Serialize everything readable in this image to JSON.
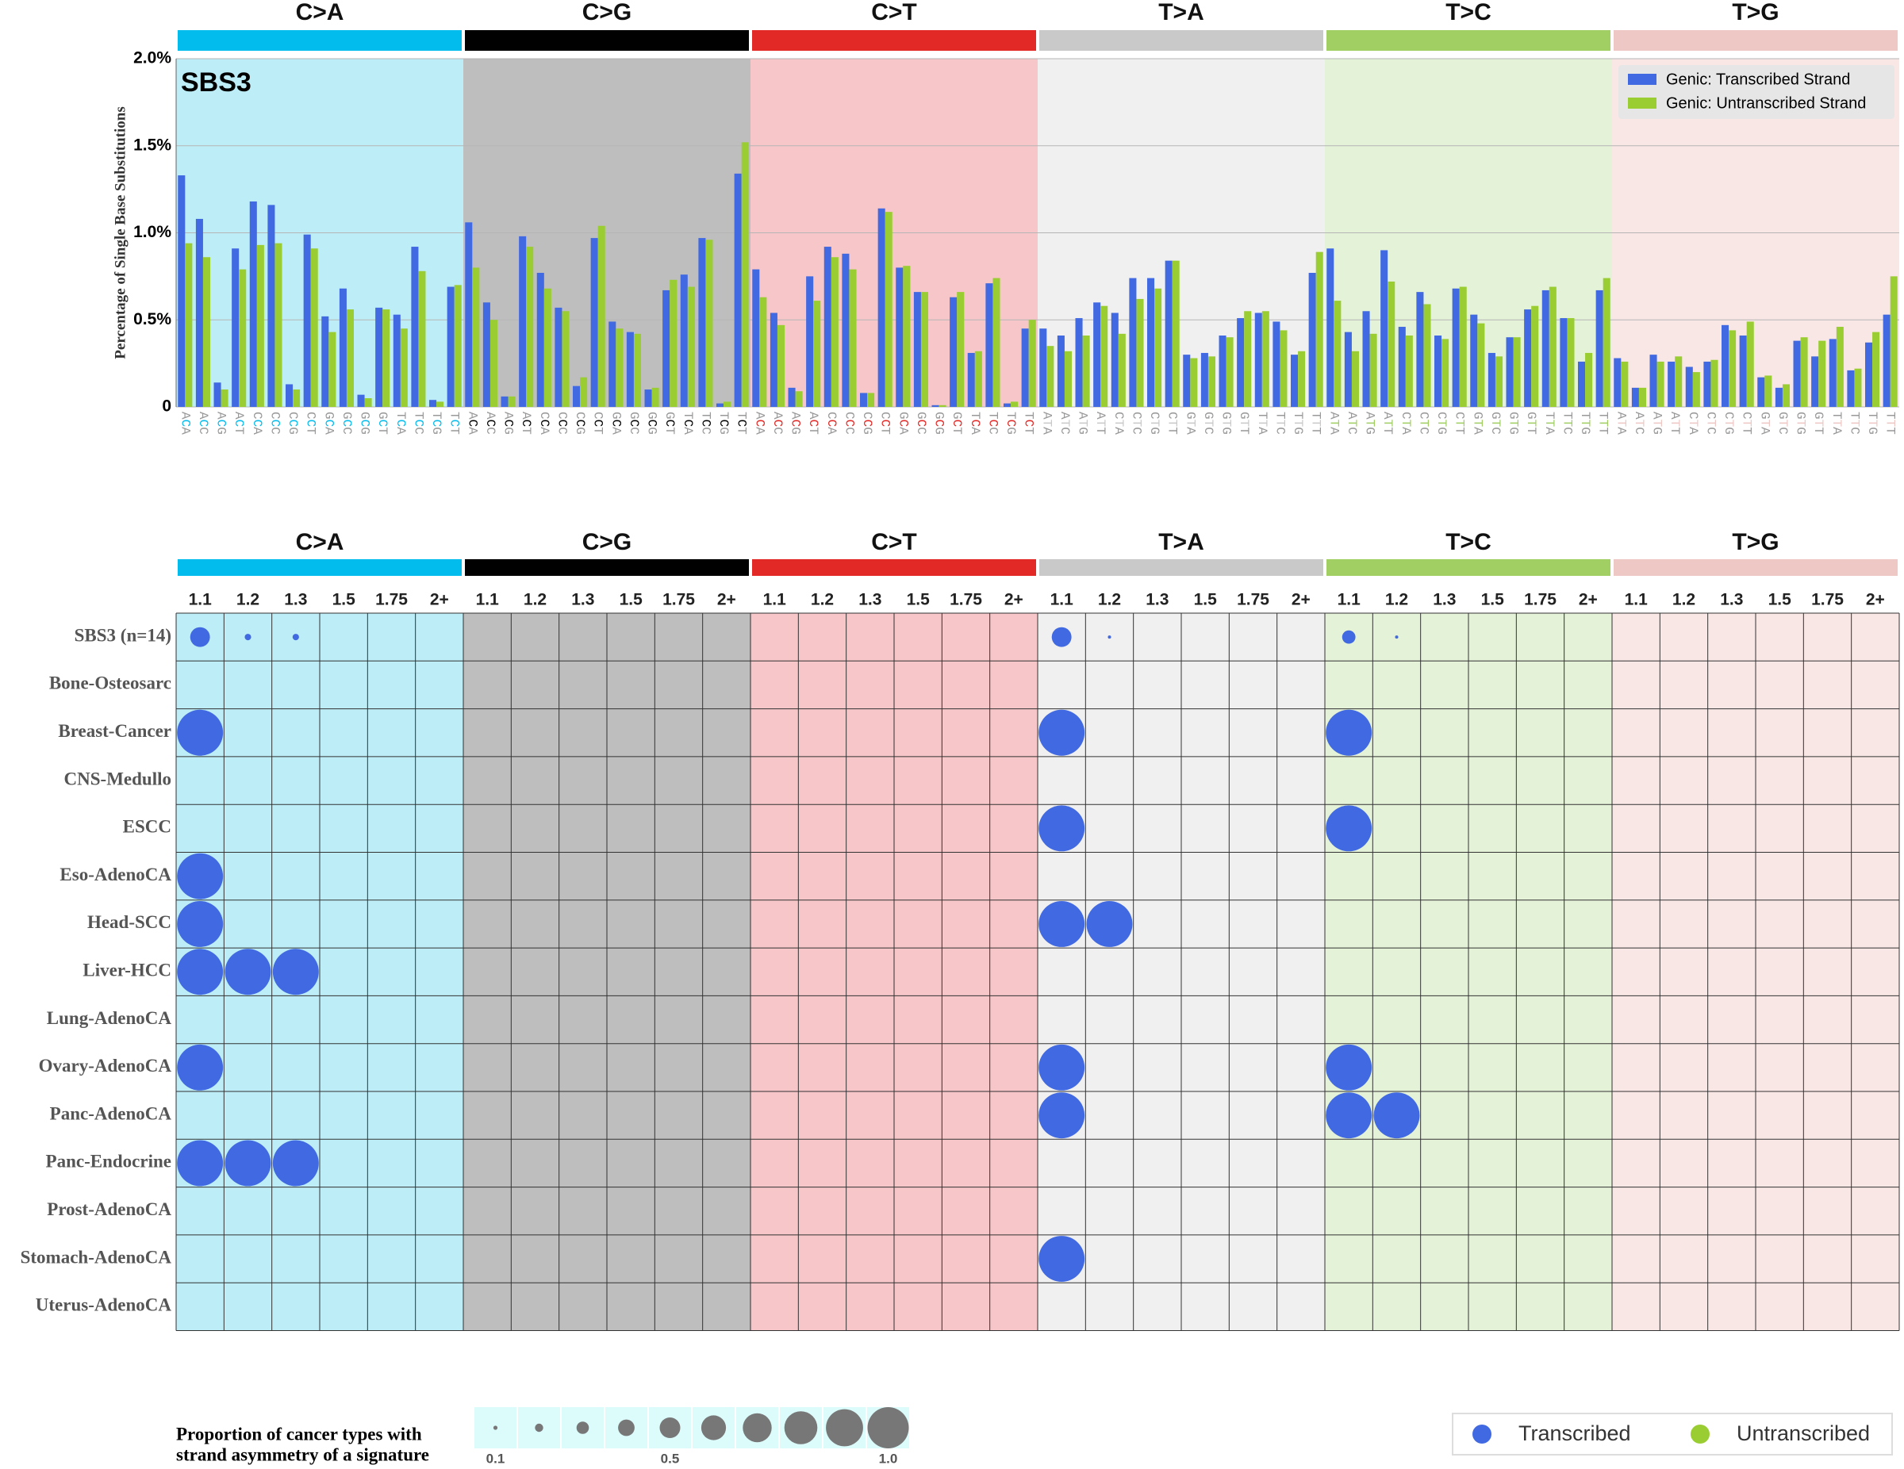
{
  "chart_data": [
    {
      "type": "bar",
      "title": "SBS3",
      "y_label": "Percentage of Single Base Substitutions",
      "groups": [
        {
          "name": "C>A",
          "color": "#03bcee",
          "background": "#bdeef7"
        },
        {
          "name": "C>G",
          "color": "#010101",
          "background": "#bebebe"
        },
        {
          "name": "C>T",
          "color": "#e32926",
          "background": "#f6c6c8"
        },
        {
          "name": "T>A",
          "color": "#cac9c9",
          "background": "#f0f0f0"
        },
        {
          "name": "T>C",
          "color": "#a1cf64",
          "background": "#e4f2d8"
        },
        {
          "name": "T>G",
          "color": "#edc8c5",
          "background": "#f9e7e5"
        }
      ],
      "categories": [
        "ACA",
        "ACC",
        "ACG",
        "ACT",
        "CCA",
        "CCC",
        "CCG",
        "CCT",
        "GCA",
        "GCC",
        "GCG",
        "GCT",
        "TCA",
        "TCC",
        "TCG",
        "TCT",
        "ACA",
        "ACC",
        "ACG",
        "ACT",
        "CCA",
        "CCC",
        "CCG",
        "CCT",
        "GCA",
        "GCC",
        "GCG",
        "GCT",
        "TCA",
        "TCC",
        "TCG",
        "TCT",
        "ACA",
        "ACC",
        "ACG",
        "ACT",
        "CCA",
        "CCC",
        "CCG",
        "CCT",
        "GCA",
        "GCC",
        "GCG",
        "GCT",
        "TCA",
        "TCC",
        "TCG",
        "TCT",
        "ATA",
        "ATC",
        "ATG",
        "ATT",
        "CTA",
        "CTC",
        "CTG",
        "CTT",
        "GTA",
        "GTC",
        "GTG",
        "GTT",
        "TTA",
        "TTC",
        "TTG",
        "TTT",
        "ATA",
        "ATC",
        "ATG",
        "ATT",
        "CTA",
        "CTC",
        "CTG",
        "CTT",
        "GTA",
        "GTC",
        "GTG",
        "GTT",
        "TTA",
        "TTC",
        "TTG",
        "TTT",
        "ATA",
        "ATC",
        "ATG",
        "ATT",
        "CTA",
        "CTC",
        "CTG",
        "CTT",
        "GTA",
        "GTC",
        "GTG",
        "GTT",
        "TTA",
        "TTC",
        "TTG",
        "TTT"
      ],
      "series": [
        {
          "name": "Genic: Transcribed Strand",
          "color": "#4169e1",
          "values": [
            1.33,
            1.08,
            0.14,
            0.91,
            1.18,
            1.16,
            0.13,
            0.99,
            0.52,
            0.68,
            0.07,
            0.57,
            0.53,
            0.92,
            0.04,
            0.69,
            1.06,
            0.6,
            0.06,
            0.98,
            0.77,
            0.57,
            0.12,
            0.97,
            0.49,
            0.43,
            0.1,
            0.67,
            0.76,
            0.97,
            0.02,
            1.34,
            0.79,
            0.54,
            0.11,
            0.75,
            0.92,
            0.88,
            0.08,
            1.14,
            0.8,
            0.66,
            0.01,
            0.63,
            0.31,
            0.71,
            0.02,
            0.45,
            0.45,
            0.41,
            0.51,
            0.6,
            0.54,
            0.74,
            0.74,
            0.84,
            0.3,
            0.31,
            0.41,
            0.51,
            0.54,
            0.49,
            0.3,
            0.77,
            0.91,
            0.43,
            0.55,
            0.9,
            0.46,
            0.66,
            0.41,
            0.68,
            0.53,
            0.31,
            0.4,
            0.56,
            0.67,
            0.51,
            0.26,
            0.67,
            0.28,
            0.11,
            0.3,
            0.26,
            0.23,
            0.26,
            0.47,
            0.41,
            0.17,
            0.11,
            0.38,
            0.29,
            0.39,
            0.21,
            0.37,
            0.53
          ]
        },
        {
          "name": "Genic: Untranscribed Strand",
          "color": "#9acd32",
          "values": [
            0.94,
            0.86,
            0.1,
            0.79,
            0.93,
            0.94,
            0.1,
            0.91,
            0.43,
            0.56,
            0.05,
            0.56,
            0.45,
            0.78,
            0.03,
            0.7,
            0.8,
            0.5,
            0.06,
            0.92,
            0.68,
            0.55,
            0.17,
            1.04,
            0.45,
            0.42,
            0.11,
            0.73,
            0.69,
            0.96,
            0.03,
            1.52,
            0.63,
            0.47,
            0.09,
            0.61,
            0.86,
            0.79,
            0.08,
            1.12,
            0.81,
            0.66,
            0.01,
            0.66,
            0.32,
            0.74,
            0.03,
            0.5,
            0.35,
            0.32,
            0.41,
            0.58,
            0.42,
            0.62,
            0.68,
            0.84,
            0.28,
            0.29,
            0.4,
            0.55,
            0.55,
            0.44,
            0.32,
            0.89,
            0.61,
            0.32,
            0.42,
            0.72,
            0.41,
            0.59,
            0.39,
            0.69,
            0.48,
            0.29,
            0.4,
            0.58,
            0.69,
            0.51,
            0.31,
            0.74,
            0.26,
            0.11,
            0.26,
            0.29,
            0.2,
            0.27,
            0.44,
            0.49,
            0.18,
            0.13,
            0.4,
            0.38,
            0.46,
            0.22,
            0.43,
            0.75
          ]
        }
      ],
      "ylim": [
        0,
        2
      ],
      "yticks": [
        0,
        {
          "value": 0.5,
          "label": "0.5%"
        },
        {
          "value": 1.0,
          "label": "1.0%"
        },
        {
          "value": 1.5,
          "label": "1.5%"
        },
        {
          "value": 2.0,
          "label": "2.0%"
        }
      ],
      "grid": true,
      "legend": "upper right"
    },
    {
      "type": "bubble",
      "groups": [
        {
          "name": "C>A",
          "color": "#03bcee",
          "background": "#bdeef7"
        },
        {
          "name": "C>G",
          "color": "#010101",
          "background": "#bebebe"
        },
        {
          "name": "C>T",
          "color": "#e32926",
          "background": "#f6c6c8"
        },
        {
          "name": "T>A",
          "color": "#cac9c9",
          "background": "#f0f0f0"
        },
        {
          "name": "T>C",
          "color": "#a1cf64",
          "background": "#e4f2d8"
        },
        {
          "name": "T>G",
          "color": "#edc8c5",
          "background": "#f9e7e5"
        }
      ],
      "thresholds": [
        "1.1",
        "1.2",
        "1.3",
        "1.5",
        "1.75",
        "2+"
      ],
      "color": "#4169e1",
      "rows": [
        {
          "label": "SBS3 (n=14)",
          "values": [
            0.43,
            0.14,
            0.14,
            null,
            null,
            null,
            null,
            null,
            null,
            null,
            null,
            null,
            null,
            null,
            null,
            null,
            null,
            null,
            0.43,
            0.07,
            null,
            null,
            null,
            null,
            0.29,
            0.07,
            null,
            null,
            null,
            null,
            null,
            null,
            null,
            null,
            null,
            null
          ]
        },
        {
          "label": "Bone-Osteosarc",
          "values": [
            null,
            null,
            null,
            null,
            null,
            null,
            null,
            null,
            null,
            null,
            null,
            null,
            null,
            null,
            null,
            null,
            null,
            null,
            null,
            null,
            null,
            null,
            null,
            null,
            null,
            null,
            null,
            null,
            null,
            null,
            null,
            null,
            null,
            null,
            null,
            null
          ]
        },
        {
          "label": "Breast-Cancer",
          "values": [
            1,
            null,
            null,
            null,
            null,
            null,
            null,
            null,
            null,
            null,
            null,
            null,
            null,
            null,
            null,
            null,
            null,
            null,
            1,
            null,
            null,
            null,
            null,
            null,
            1,
            null,
            null,
            null,
            null,
            null,
            null,
            null,
            null,
            null,
            null,
            null
          ]
        },
        {
          "label": "CNS-Medullo",
          "values": [
            null,
            null,
            null,
            null,
            null,
            null,
            null,
            null,
            null,
            null,
            null,
            null,
            null,
            null,
            null,
            null,
            null,
            null,
            null,
            null,
            null,
            null,
            null,
            null,
            null,
            null,
            null,
            null,
            null,
            null,
            null,
            null,
            null,
            null,
            null,
            null
          ]
        },
        {
          "label": "ESCC",
          "values": [
            null,
            null,
            null,
            null,
            null,
            null,
            null,
            null,
            null,
            null,
            null,
            null,
            null,
            null,
            null,
            null,
            null,
            null,
            1,
            null,
            null,
            null,
            null,
            null,
            1,
            null,
            null,
            null,
            null,
            null,
            null,
            null,
            null,
            null,
            null,
            null
          ]
        },
        {
          "label": "Eso-AdenoCA",
          "values": [
            1,
            null,
            null,
            null,
            null,
            null,
            null,
            null,
            null,
            null,
            null,
            null,
            null,
            null,
            null,
            null,
            null,
            null,
            null,
            null,
            null,
            null,
            null,
            null,
            null,
            null,
            null,
            null,
            null,
            null,
            null,
            null,
            null,
            null,
            null,
            null
          ]
        },
        {
          "label": "Head-SCC",
          "values": [
            1,
            null,
            null,
            null,
            null,
            null,
            null,
            null,
            null,
            null,
            null,
            null,
            null,
            null,
            null,
            null,
            null,
            null,
            1,
            1,
            null,
            null,
            null,
            null,
            null,
            null,
            null,
            null,
            null,
            null,
            null,
            null,
            null,
            null,
            null,
            null
          ]
        },
        {
          "label": "Liver-HCC",
          "values": [
            1,
            1,
            1,
            null,
            null,
            null,
            null,
            null,
            null,
            null,
            null,
            null,
            null,
            null,
            null,
            null,
            null,
            null,
            null,
            null,
            null,
            null,
            null,
            null,
            null,
            null,
            null,
            null,
            null,
            null,
            null,
            null,
            null,
            null,
            null,
            null
          ]
        },
        {
          "label": "Lung-AdenoCA",
          "values": [
            null,
            null,
            null,
            null,
            null,
            null,
            null,
            null,
            null,
            null,
            null,
            null,
            null,
            null,
            null,
            null,
            null,
            null,
            null,
            null,
            null,
            null,
            null,
            null,
            null,
            null,
            null,
            null,
            null,
            null,
            null,
            null,
            null,
            null,
            null,
            null
          ]
        },
        {
          "label": "Ovary-AdenoCA",
          "values": [
            1,
            null,
            null,
            null,
            null,
            null,
            null,
            null,
            null,
            null,
            null,
            null,
            null,
            null,
            null,
            null,
            null,
            null,
            1,
            null,
            null,
            null,
            null,
            null,
            1,
            null,
            null,
            null,
            null,
            null,
            null,
            null,
            null,
            null,
            null,
            null
          ]
        },
        {
          "label": "Panc-AdenoCA",
          "values": [
            null,
            null,
            null,
            null,
            null,
            null,
            null,
            null,
            null,
            null,
            null,
            null,
            null,
            null,
            null,
            null,
            null,
            null,
            1,
            null,
            null,
            null,
            null,
            null,
            1,
            1,
            null,
            null,
            null,
            null,
            null,
            null,
            null,
            null,
            null,
            null
          ]
        },
        {
          "label": "Panc-Endocrine",
          "values": [
            1,
            1,
            1,
            null,
            null,
            null,
            null,
            null,
            null,
            null,
            null,
            null,
            null,
            null,
            null,
            null,
            null,
            null,
            null,
            null,
            null,
            null,
            null,
            null,
            null,
            null,
            null,
            null,
            null,
            null,
            null,
            null,
            null,
            null,
            null,
            null
          ]
        },
        {
          "label": "Prost-AdenoCA",
          "values": [
            null,
            null,
            null,
            null,
            null,
            null,
            null,
            null,
            null,
            null,
            null,
            null,
            null,
            null,
            null,
            null,
            null,
            null,
            null,
            null,
            null,
            null,
            null,
            null,
            null,
            null,
            null,
            null,
            null,
            null,
            null,
            null,
            null,
            null,
            null,
            null
          ]
        },
        {
          "label": "Stomach-AdenoCA",
          "values": [
            null,
            null,
            null,
            null,
            null,
            null,
            null,
            null,
            null,
            null,
            null,
            null,
            null,
            null,
            null,
            null,
            null,
            null,
            1,
            null,
            null,
            null,
            null,
            null,
            null,
            null,
            null,
            null,
            null,
            null,
            null,
            null,
            null,
            null,
            null,
            null
          ]
        },
        {
          "label": "Uterus-AdenoCA",
          "values": [
            null,
            null,
            null,
            null,
            null,
            null,
            null,
            null,
            null,
            null,
            null,
            null,
            null,
            null,
            null,
            null,
            null,
            null,
            null,
            null,
            null,
            null,
            null,
            null,
            null,
            null,
            null,
            null,
            null,
            null,
            null,
            null,
            null,
            null,
            null,
            null
          ]
        }
      ],
      "legend": [
        {
          "name": "Transcribed",
          "color": "#4169e1"
        },
        {
          "name": "Untranscribed",
          "color": "#9acd32"
        }
      ],
      "size_legend": {
        "title": [
          "Proportion of cancer types with",
          "strand asymmetry of a signature"
        ],
        "color": "#777777",
        "values": [
          0.1,
          0.2,
          0.3,
          0.4,
          0.5,
          0.6,
          0.7,
          0.8,
          0.9,
          1.0
        ],
        "ticks": [
          0.1,
          0.5,
          {
            "value": 1,
            "label": "1.0"
          }
        ]
      }
    }
  ]
}
